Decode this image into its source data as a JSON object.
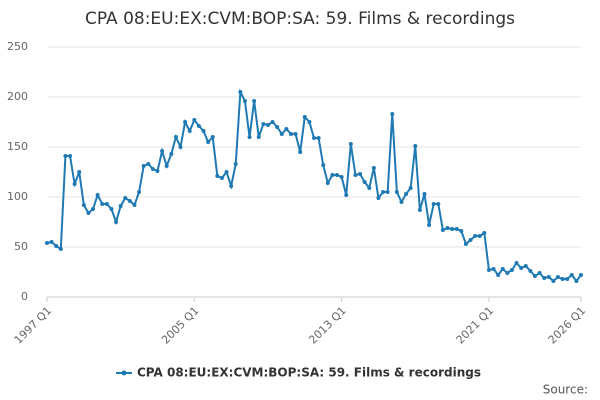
{
  "chart_data": {
    "type": "line",
    "title": "CPA 08:EU:EX:CVM:BOP:SA: 59. Films & recordings",
    "categories": [
      "1997 Q1",
      null,
      null,
      null,
      null,
      null,
      null,
      null,
      null,
      null,
      null,
      null,
      null,
      null,
      null,
      null,
      null,
      null,
      null,
      null,
      null,
      null,
      null,
      null,
      null,
      null,
      null,
      null,
      null,
      null,
      null,
      null,
      "2005 Q1",
      null,
      null,
      null,
      null,
      null,
      null,
      null,
      null,
      null,
      null,
      null,
      null,
      null,
      null,
      null,
      null,
      null,
      null,
      null,
      null,
      null,
      null,
      null,
      null,
      null,
      null,
      null,
      null,
      null,
      null,
      null,
      "2013 Q1",
      null,
      null,
      null,
      null,
      null,
      null,
      null,
      null,
      null,
      null,
      null,
      null,
      null,
      null,
      null,
      null,
      null,
      null,
      null,
      null,
      null,
      null,
      null,
      null,
      null,
      null,
      null,
      null,
      null,
      null,
      null,
      "2021 Q1",
      null,
      null,
      null,
      null,
      null,
      null,
      null,
      null,
      null,
      null,
      null,
      null,
      null,
      null,
      null,
      null,
      null,
      null,
      null,
      "2026 Q1"
    ],
    "series": [
      {
        "name": "CPA 08:EU:EX:CVM:BOP:SA: 59. Films & recordings",
        "color": "#1f7ab4",
        "values": [
          54,
          55,
          51,
          48,
          141,
          141,
          113,
          125,
          92,
          84,
          88,
          102,
          93,
          93,
          88,
          75,
          91,
          99,
          96,
          92,
          105,
          131,
          133,
          128,
          126,
          146,
          131,
          143,
          160,
          150,
          175,
          166,
          177,
          171,
          166,
          155,
          160,
          121,
          119,
          125,
          111,
          133,
          205,
          196,
          160,
          196,
          160,
          173,
          172,
          175,
          170,
          163,
          168,
          163,
          163,
          145,
          180,
          175,
          159,
          159,
          132,
          114,
          122,
          122,
          120,
          102,
          153,
          122,
          123,
          115,
          109,
          129,
          99,
          105,
          105,
          183,
          105,
          95,
          103,
          109,
          151,
          87,
          103,
          72,
          93,
          93,
          67,
          69,
          68,
          68,
          66,
          53,
          57,
          61,
          61,
          64,
          27,
          28,
          22,
          28,
          24,
          27,
          34,
          29,
          31,
          26,
          21,
          24,
          19,
          20,
          16,
          20,
          18,
          18,
          22,
          16,
          22
        ]
      }
    ],
    "ylim": [
      0,
      250
    ],
    "yticks": [
      0,
      50,
      100,
      150,
      200,
      250
    ],
    "grid": true,
    "legend": "bottom",
    "footer": "Source:"
  }
}
